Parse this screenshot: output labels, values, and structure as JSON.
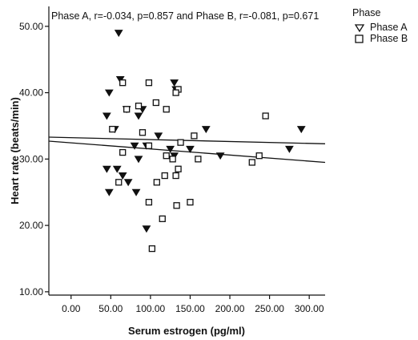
{
  "chart_data": {
    "type": "scatter",
    "title": "Phase A, r=-0.034, p=0.857 and Phase B, r=-0.081, p=0.671",
    "xlabel": "Serum estrogen (pg/ml)",
    "ylabel": "Heart rate (beats/min)",
    "xlim": [
      -28,
      320
    ],
    "ylim": [
      9.5,
      53
    ],
    "xticks": [
      "0.00",
      "50.00",
      "100.00",
      "150.00",
      "200.00",
      "250.00",
      "300.00"
    ],
    "xtick_values": [
      0,
      50,
      100,
      150,
      200,
      250,
      300
    ],
    "yticks": [
      "10.00",
      "20.00",
      "30.00",
      "40.00",
      "50.00"
    ],
    "ytick_values": [
      10,
      20,
      30,
      40,
      50
    ],
    "legend": {
      "title": "Phase",
      "position": "top-right"
    },
    "series": [
      {
        "name": "Phase A",
        "marker": "triangle-down-open",
        "points": [
          [
            60,
            49
          ],
          [
            62,
            42
          ],
          [
            48,
            40
          ],
          [
            130,
            41.5
          ],
          [
            132,
            40.5
          ],
          [
            45,
            36.5
          ],
          [
            70,
            37.5
          ],
          [
            85,
            36.5
          ],
          [
            90,
            37.5
          ],
          [
            55,
            34.5
          ],
          [
            170,
            34.5
          ],
          [
            110,
            33.5
          ],
          [
            290,
            34.5
          ],
          [
            125,
            31.5
          ],
          [
            130,
            30.5
          ],
          [
            150,
            31.5
          ],
          [
            275,
            31.5
          ],
          [
            80,
            32
          ],
          [
            85,
            30
          ],
          [
            95,
            32
          ],
          [
            188,
            30.5
          ],
          [
            45,
            28.5
          ],
          [
            58,
            28.5
          ],
          [
            65,
            27.5
          ],
          [
            72,
            26.5
          ],
          [
            82,
            25
          ],
          [
            48,
            25
          ],
          [
            95,
            19.5
          ]
        ],
        "fit_line": {
          "x": [
            -28,
            320
          ],
          "y": [
            33.3,
            32.3
          ]
        }
      },
      {
        "name": "Phase B",
        "marker": "square-open",
        "points": [
          [
            65,
            41.5
          ],
          [
            98,
            41.5
          ],
          [
            135,
            40.5
          ],
          [
            132,
            40
          ],
          [
            70,
            37.5
          ],
          [
            107,
            38.5
          ],
          [
            120,
            37.5
          ],
          [
            85,
            38
          ],
          [
            245,
            36.5
          ],
          [
            52,
            34.5
          ],
          [
            90,
            34
          ],
          [
            155,
            33.5
          ],
          [
            138,
            32.5
          ],
          [
            98,
            32
          ],
          [
            65,
            31
          ],
          [
            120,
            30.5
          ],
          [
            128,
            30
          ],
          [
            160,
            30
          ],
          [
            228,
            29.5
          ],
          [
            237,
            30.5
          ],
          [
            135,
            28.5
          ],
          [
            132,
            27.5
          ],
          [
            118,
            27.5
          ],
          [
            108,
            26.5
          ],
          [
            60,
            26.5
          ],
          [
            98,
            23.5
          ],
          [
            133,
            23
          ],
          [
            150,
            23.5
          ],
          [
            115,
            21
          ],
          [
            102,
            16.5
          ]
        ],
        "fit_line": {
          "x": [
            -28,
            320
          ],
          "y": [
            32.7,
            29.5
          ]
        }
      }
    ]
  }
}
